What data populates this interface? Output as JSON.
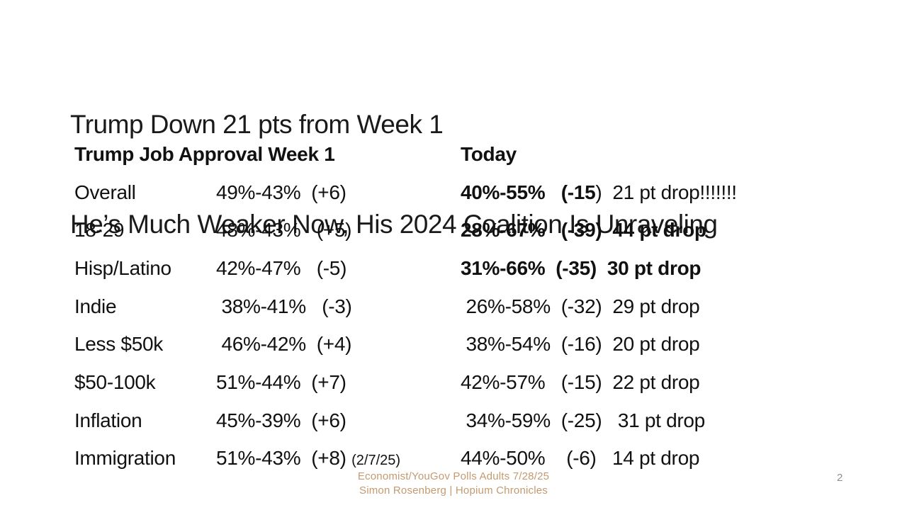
{
  "slide": {
    "title": {
      "line1": "Trump Down 21 pts from Week 1",
      "line2": "He’s Much Weaker Now, His 2024 Coalition Is Unraveling"
    },
    "table": {
      "header": {
        "week1": "Trump Job Approval Week 1",
        "today": "Today"
      },
      "rows": [
        {
          "label": "Overall",
          "week1": "49%-43%  (+6)",
          "note": "",
          "today_bold": "40%-55%   (-15",
          "today_reg": ")",
          "drop": "  21 pt drop!!!!!!!"
        },
        {
          "label": "18-29",
          "week1": "48%-43%   (+5)",
          "note": "",
          "today_bold": "28%-67%   (-39)",
          "today_reg": "",
          "drop": "  44 pt drop"
        },
        {
          "label": "Hisp/Latino",
          "week1": "42%-47%   (-5)",
          "note": "",
          "today_bold": "31%-66%  (-35)",
          "today_reg": "",
          "drop": "  30 pt drop"
        },
        {
          "label": "Indie",
          "week1": " 38%-41%   (-3)",
          "note": "",
          "today_bold": "",
          "today_reg": " 26%-58%  (-32)",
          "drop": "  29 pt drop"
        },
        {
          "label": "Less $50k",
          "week1": " 46%-42%  (+4)",
          "note": "",
          "today_bold": "",
          "today_reg": " 38%-54%  (-16)",
          "drop": "  20 pt drop"
        },
        {
          "label": "$50-100k",
          "week1": "51%-44%  (+7)",
          "note": "",
          "today_bold": "",
          "today_reg": "42%-57%   (-15)",
          "drop": "  22 pt drop"
        },
        {
          "label": "Inflation",
          "week1": "45%-39%  (+6)",
          "note": "",
          "today_bold": "",
          "today_reg": " 34%-59%  (-25)",
          "drop": "   31 pt drop"
        },
        {
          "label": "Immigration",
          "week1": "51%-43%  (+8) ",
          "note": "(2/7/25)",
          "today_bold": "",
          "today_reg": "44%-50%    (-6)",
          "drop": "   14 pt drop"
        }
      ]
    },
    "footer": {
      "line1": "Economist/YouGov Polls Adults 7/28/25",
      "line2": "Simon Rosenberg | Hopium Chronicles"
    },
    "page_number": "2",
    "colors": {
      "text": "#1a1a1a",
      "footer_text": "#c49a6e",
      "page_number": "#8a9097"
    }
  }
}
